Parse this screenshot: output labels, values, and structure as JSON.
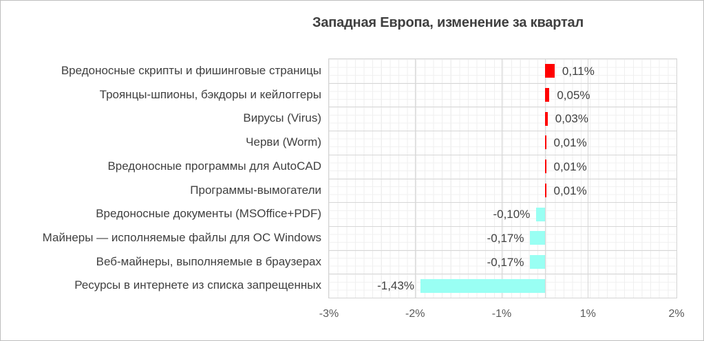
{
  "title": "Западная Европа, изменение за квартал",
  "chart_data": {
    "type": "bar",
    "orientation": "horizontal",
    "title": "Западная Европа, изменение за квартал",
    "categories": [
      "Вредоносные скрипты и фишинговые страницы",
      "Троянцы-шпионы, бэкдоры и кейлоггеры",
      "Вирусы (Virus)",
      "Черви (Worm)",
      "Вредоносные программы для AutoCAD",
      "Программы-вымогатели",
      "Вредоносные документы (MSOffice+PDF)",
      "Майнеры — исполняемые файлы для ОС Windows",
      "Веб-майнеры, выполняемые в браузерах",
      "Ресурсы в интернете из списка запрещенных"
    ],
    "values": [
      0.11,
      0.05,
      0.03,
      0.01,
      0.01,
      0.01,
      -0.1,
      -0.17,
      -0.17,
      -1.43
    ],
    "value_labels": [
      "0,11%",
      "0,05%",
      "0,03%",
      "0,01%",
      "0,01%",
      "0,01%",
      "-0,10%",
      "-0,17%",
      "-0,17%",
      "-1,43%"
    ],
    "x_tick_labels": [
      "-3%",
      "-2%",
      "-1%",
      "1%",
      "2%"
    ],
    "xlim": [
      -3,
      2
    ],
    "grid": true,
    "legend": false,
    "colors": {
      "positive_bar": "#FF0000",
      "negative_bar": "#99FFF3",
      "grid_minor": "#EFEFEF",
      "grid_major": "#D6D6D6",
      "title_text": "#3F3F3F",
      "label_text": "#404040",
      "axis_text": "#595959"
    }
  }
}
